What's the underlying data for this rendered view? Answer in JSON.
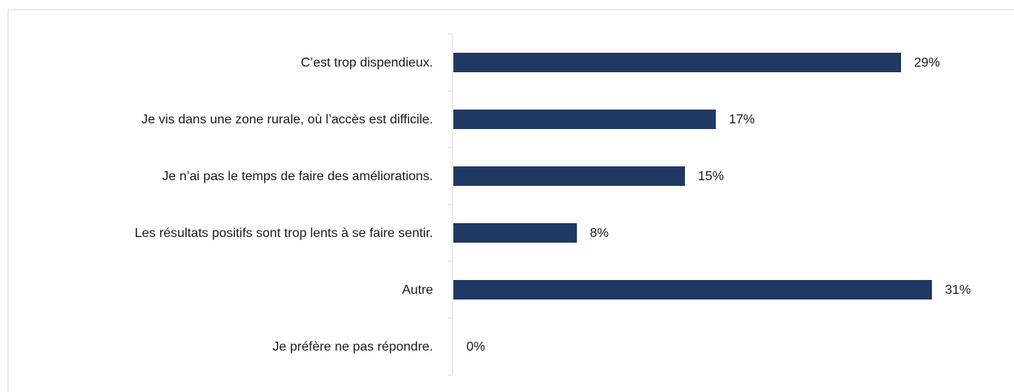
{
  "chart_data": {
    "type": "bar",
    "orientation": "horizontal",
    "categories": [
      "C’est trop dispendieux.",
      "Je vis dans une zone rurale, où l’accès est difficile.",
      "Je n’ai pas le temps de faire des améliorations.",
      "Les résultats positifs sont trop lents à se faire sentir.",
      "Autre",
      "Je préfère ne pas répondre."
    ],
    "values": [
      29,
      17,
      15,
      8,
      31,
      0
    ],
    "value_labels": [
      "29%",
      "17%",
      "15%",
      "8%",
      "31%",
      "0%"
    ],
    "color": "#203864"
  }
}
